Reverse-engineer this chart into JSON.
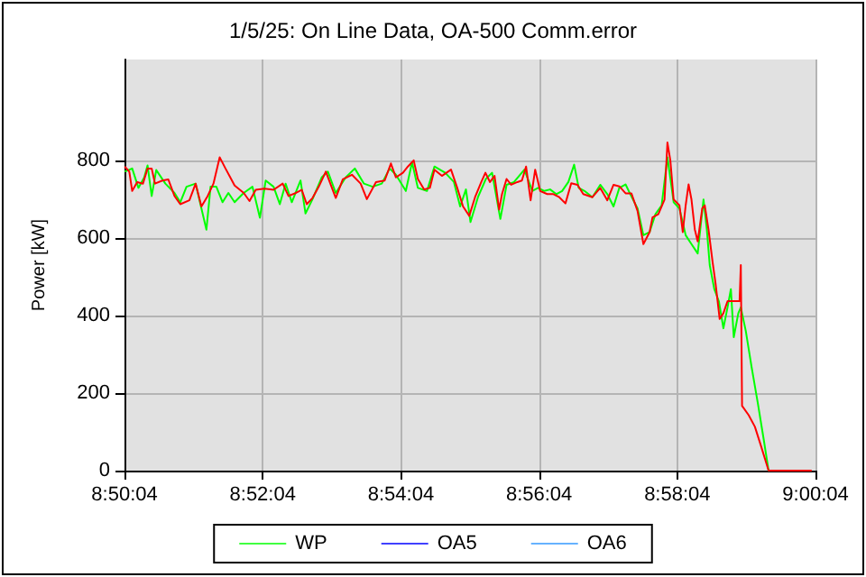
{
  "chart_data": {
    "type": "line",
    "title": "1/5/25: On Line Data, OA-500 Comm.error",
    "ylabel": "Power [kW]",
    "xlim": [
      8.83444,
      9.00111
    ],
    "xticks": [
      {
        "value": 8.83444,
        "label": "8:50:04"
      },
      {
        "value": 8.86778,
        "label": "8:52:04"
      },
      {
        "value": 8.90111,
        "label": "8:54:04"
      },
      {
        "value": 8.93444,
        "label": "8:56:04"
      },
      {
        "value": 8.96778,
        "label": "8:58:04"
      },
      {
        "value": 9.00111,
        "label": "9:00:04"
      }
    ],
    "ylim": [
      0,
      1060
    ],
    "yticks": [
      0,
      200,
      400,
      600,
      800
    ],
    "grid": true,
    "legend": "bottom",
    "marker": "none",
    "line_style": "solid",
    "series": [
      {
        "name": "WP",
        "color": "#00ff00",
        "x": [
          8.8345,
          8.8363,
          8.8378,
          8.8392,
          8.84,
          8.841,
          8.8421,
          8.8443,
          8.8465,
          8.8479,
          8.8494,
          8.8516,
          8.853,
          8.8542,
          8.8552,
          8.8566,
          8.8581,
          8.8595,
          8.861,
          8.8632,
          8.8653,
          8.8671,
          8.8685,
          8.8704,
          8.8719,
          8.8733,
          8.8748,
          8.8769,
          8.8781,
          8.8798,
          8.882,
          8.8835,
          8.8854,
          8.8878,
          8.89,
          8.8922,
          8.8943,
          8.8965,
          8.8984,
          8.8999,
          8.9023,
          8.9038,
          8.9052,
          8.9074,
          8.9092,
          8.9118,
          8.9139,
          8.9154,
          8.9168,
          8.9179,
          8.9197,
          8.9216,
          8.9231,
          8.9251,
          8.9266,
          8.9284,
          8.9309,
          8.9328,
          8.9342,
          8.9357,
          8.9371,
          8.9386,
          8.94,
          8.9415,
          8.9429,
          8.944,
          8.9454,
          8.9473,
          8.9492,
          8.9509,
          8.9524,
          8.9538,
          8.9553,
          8.9567,
          8.9582,
          8.9596,
          8.9611,
          8.9625,
          8.964,
          8.9654,
          8.9669,
          8.9683,
          8.9698,
          8.9712,
          8.9727,
          8.9741,
          8.9749,
          8.9756,
          8.9767,
          8.9778,
          8.9789,
          8.9799,
          8.9807,
          8.9814,
          8.9825,
          8.9831,
          8.9843,
          8.9857,
          8.9872,
          8.9886,
          8.9898,
          8.9904
        ],
        "values": [
          771,
          779,
          729,
          756,
          787,
          708,
          775,
          740,
          716,
          692,
          732,
          740,
          676,
          621,
          732,
          732,
          692,
          716,
          692,
          716,
          732,
          652,
          748,
          732,
          687,
          740,
          692,
          748,
          663,
          700,
          756,
          771,
          716,
          756,
          779,
          740,
          732,
          740,
          779,
          763,
          721,
          795,
          729,
          721,
          784,
          768,
          744,
          681,
          725,
          641,
          705,
          752,
          768,
          649,
          737,
          744,
          776,
          721,
          729,
          721,
          725,
          713,
          721,
          744,
          789,
          729,
          721,
          705,
          737,
          713,
          681,
          729,
          738,
          707,
          676,
          607,
          615,
          661,
          684,
          808,
          692,
          676,
          607,
          584,
          560,
          699,
          622,
          530,
          468,
          437,
          367,
          421,
          468,
          344,
          406,
          421,
          360,
          267,
          174,
          82,
          0,
          0
        ]
      },
      {
        "color": "#ff0000",
        "x": [
          8.8345,
          8.8356,
          8.8363,
          8.8375,
          8.8389,
          8.84,
          8.841,
          8.8418,
          8.8436,
          8.845,
          8.8465,
          8.8479,
          8.8501,
          8.8516,
          8.853,
          8.8545,
          8.8559,
          8.8574,
          8.8588,
          8.861,
          8.8632,
          8.8646,
          8.8661,
          8.8682,
          8.8704,
          8.8726,
          8.874,
          8.8758,
          8.8772,
          8.8784,
          8.8798,
          8.8813,
          8.883,
          8.8854,
          8.8871,
          8.8893,
          8.8914,
          8.8929,
          8.8951,
          8.8972,
          8.8987,
          8.8999,
          8.9016,
          8.9028,
          8.9042,
          8.9052,
          8.9067,
          8.9081,
          8.9092,
          8.911,
          8.9132,
          8.9147,
          8.9161,
          8.9176,
          8.919,
          8.9205,
          8.9215,
          8.9226,
          8.9237,
          8.9248,
          8.9255,
          8.9266,
          8.9277,
          8.9292,
          8.9303,
          8.9313,
          8.9324,
          8.9335,
          8.9347,
          8.9364,
          8.9379,
          8.9393,
          8.9408,
          8.9422,
          8.9437,
          8.9451,
          8.9473,
          8.9492,
          8.9509,
          8.9524,
          8.9538,
          8.9553,
          8.9567,
          8.9582,
          8.9596,
          8.9611,
          8.9618,
          8.9632,
          8.9647,
          8.9654,
          8.9661,
          8.9669,
          8.9683,
          8.9691,
          8.9698,
          8.9705,
          8.9712,
          8.972,
          8.9727,
          8.9738,
          8.9744,
          8.9753,
          8.9763,
          8.977,
          8.978,
          8.9789,
          8.9799,
          8.9814,
          8.9828,
          8.9831,
          8.9834,
          8.985,
          8.9865,
          8.9879,
          8.9898,
          9.0002
        ],
        "values": [
          784,
          771,
          721,
          744,
          740,
          779,
          779,
          740,
          748,
          751,
          708,
          687,
          697,
          740,
          681,
          708,
          740,
          808,
          779,
          735,
          716,
          695,
          724,
          727,
          724,
          740,
          708,
          716,
          724,
          687,
          703,
          732,
          771,
          703,
          751,
          763,
          740,
          700,
          744,
          748,
          792,
          756,
          768,
          784,
          800,
          752,
          725,
          729,
          776,
          760,
          776,
          729,
          681,
          657,
          705,
          744,
          768,
          744,
          760,
          673,
          713,
          752,
          737,
          744,
          748,
          784,
          697,
          776,
          721,
          713,
          713,
          705,
          689,
          741,
          737,
          713,
          705,
          729,
          697,
          737,
          733,
          715,
          715,
          669,
          584,
          615,
          653,
          661,
          699,
          846,
          800,
          699,
          684,
          615,
          684,
          738,
          699,
          622,
          591,
          676,
          684,
          622,
          537,
          483,
          391,
          406,
          437,
          437,
          437,
          530,
          167,
          143,
          113,
          66,
          0,
          0
        ]
      },
      {
        "name": "OA5",
        "color": "#0000ff"
      },
      {
        "name": "OA6",
        "color": "#3399ff"
      }
    ]
  }
}
